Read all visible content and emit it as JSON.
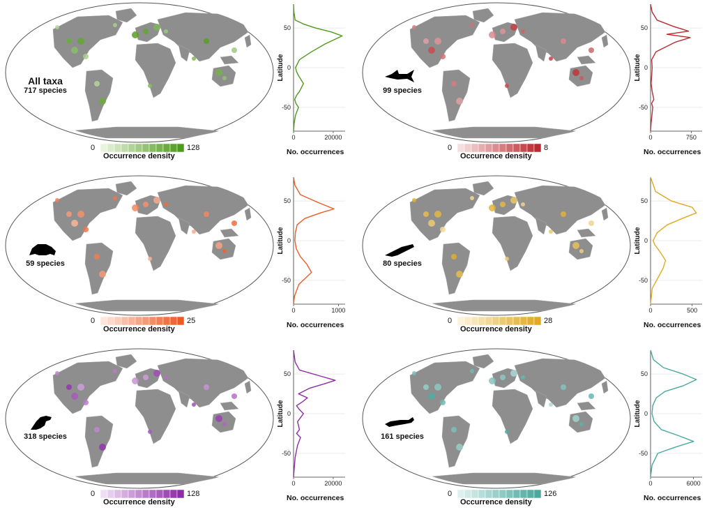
{
  "colors": {
    "land": "#8e8e8e",
    "ocean": "#ffffff",
    "border": "#9a9a9a",
    "outline": "#555555"
  },
  "panels": [
    {
      "id": "all-taxa",
      "title": "All taxa",
      "species": "717 species",
      "silhouette": "",
      "color": "#4e9a1a",
      "light": "#e9f4df",
      "legend": {
        "min": "0",
        "max": "128",
        "title": "Occurrence density"
      },
      "xticks": [
        "0",
        "20000"
      ],
      "xmax": 26000
    },
    {
      "id": "fish",
      "title": "",
      "species": "99 species",
      "silhouette": "shark-icon",
      "color": "#b92b30",
      "light": "#f6dfe0",
      "legend": {
        "min": "0",
        "max": "8",
        "title": "Occurrence density"
      },
      "xticks": [
        "0",
        "750"
      ],
      "xmax": 950
    },
    {
      "id": "amphibians",
      "title": "",
      "species": "59 species",
      "silhouette": "frog-icon",
      "color": "#ee5a24",
      "light": "#fde6db",
      "legend": {
        "min": "0",
        "max": "25",
        "title": "Occurrence density"
      },
      "xticks": [
        "0",
        "1000"
      ],
      "xmax": 1150
    },
    {
      "id": "reptiles",
      "title": "",
      "species": "80 species",
      "silhouette": "lizard-icon",
      "color": "#e0a920",
      "light": "#fbf3da",
      "legend": {
        "min": "0",
        "max": "28",
        "title": "Occurrence density"
      },
      "xticks": [
        "0",
        "500"
      ],
      "xmax": 620
    },
    {
      "id": "birds",
      "title": "",
      "species": "318 species",
      "silhouette": "bird-icon",
      "color": "#8e2ba6",
      "light": "#efdef5",
      "legend": {
        "min": "0",
        "max": "128",
        "title": "Occurrence density"
      },
      "xticks": [
        "0",
        "20000"
      ],
      "xmax": 26000
    },
    {
      "id": "mammals",
      "title": "",
      "species": "161 species",
      "silhouette": "weasel-icon",
      "color": "#4aa89e",
      "light": "#dff1ef",
      "legend": {
        "min": "0",
        "max": "126",
        "title": "Occurrence density"
      },
      "xticks": [
        "0",
        "6000"
      ],
      "xmax": 7200
    }
  ],
  "profile_axis": {
    "ylabel": "Latitude",
    "xlabel": "No. occurrences",
    "yticks": [
      "50",
      "0",
      "-50"
    ]
  },
  "chart_data": [
    {
      "type": "line",
      "title": "All taxa",
      "xlabel": "No. occurrences",
      "ylabel": "Latitude",
      "ylim": [
        -80,
        80
      ],
      "xlim": [
        0,
        26000
      ],
      "series": [
        {
          "x": [
            0,
            300,
            1000,
            2500,
            1200,
            600,
            1500,
            3000,
            5000,
            2500,
            1500,
            1000,
            3000,
            9000,
            16000,
            24500,
            19000,
            11000,
            5000,
            800,
            200,
            0
          ],
          "y": [
            -80,
            -70,
            -60,
            -50,
            -45,
            -40,
            -35,
            -30,
            -20,
            -10,
            -5,
            0,
            10,
            20,
            30,
            40,
            45,
            50,
            55,
            60,
            70,
            80
          ]
        }
      ]
    },
    {
      "type": "line",
      "title": "",
      "xlabel": "No. occurrences",
      "ylabel": "Latitude",
      "ylim": [
        -80,
        80
      ],
      "xlim": [
        0,
        950
      ],
      "series": [
        {
          "x": [
            0,
            10,
            40,
            20,
            60,
            30,
            10,
            20,
            30,
            20,
            100,
            450,
            730,
            300,
            700,
            420,
            120,
            30,
            0
          ],
          "y": [
            -80,
            -70,
            -50,
            -45,
            -40,
            -30,
            -20,
            -10,
            0,
            10,
            20,
            32,
            38,
            42,
            46,
            52,
            60,
            70,
            80
          ]
        }
      ]
    },
    {
      "type": "line",
      "title": "",
      "xlabel": "No. occurrences",
      "ylabel": "Latitude",
      "ylim": [
        -80,
        80
      ],
      "xlim": [
        0,
        1150
      ],
      "series": [
        {
          "x": [
            0,
            20,
            120,
            400,
            300,
            150,
            60,
            30,
            40,
            80,
            250,
            600,
            900,
            550,
            150,
            30,
            0
          ],
          "y": [
            -80,
            -70,
            -55,
            -40,
            -30,
            -20,
            -10,
            0,
            10,
            20,
            28,
            35,
            40,
            48,
            58,
            70,
            80
          ]
        }
      ]
    },
    {
      "type": "line",
      "title": "",
      "xlabel": "No. occurrences",
      "ylabel": "Latitude",
      "ylim": [
        -80,
        80
      ],
      "xlim": [
        0,
        620
      ],
      "series": [
        {
          "x": [
            0,
            20,
            150,
            180,
            120,
            50,
            30,
            80,
            200,
            380,
            550,
            500,
            250,
            60,
            0
          ],
          "y": [
            -80,
            -60,
            -35,
            -25,
            -15,
            -5,
            0,
            10,
            20,
            28,
            35,
            42,
            50,
            62,
            80
          ]
        }
      ]
    },
    {
      "type": "line",
      "title": "",
      "xlabel": "No. occurrences",
      "ylabel": "Latitude",
      "ylim": [
        -80,
        80
      ],
      "xlim": [
        0,
        26000
      ],
      "series": [
        {
          "x": [
            0,
            300,
            800,
            2000,
            3500,
            1500,
            3000,
            2000,
            5000,
            3000,
            1500,
            4500,
            7000,
            2500,
            8000,
            16000,
            21000,
            14000,
            3000,
            800,
            0
          ],
          "y": [
            -80,
            -70,
            -55,
            -40,
            -30,
            -25,
            -20,
            -10,
            0,
            5,
            10,
            15,
            20,
            25,
            32,
            38,
            42,
            47,
            55,
            65,
            80
          ]
        }
      ]
    },
    {
      "type": "line",
      "title": "",
      "xlabel": "No. occurrences",
      "ylabel": "Latitude",
      "ylim": [
        -80,
        80
      ],
      "xlim": [
        0,
        7200
      ],
      "series": [
        {
          "x": [
            0,
            200,
            1000,
            3500,
            6000,
            4000,
            1500,
            500,
            200,
            300,
            800,
            2000,
            4500,
            6400,
            4500,
            1800,
            400,
            0
          ],
          "y": [
            -80,
            -65,
            -50,
            -42,
            -35,
            -28,
            -20,
            -10,
            0,
            10,
            20,
            28,
            35,
            43,
            50,
            58,
            68,
            80
          ]
        }
      ]
    }
  ]
}
